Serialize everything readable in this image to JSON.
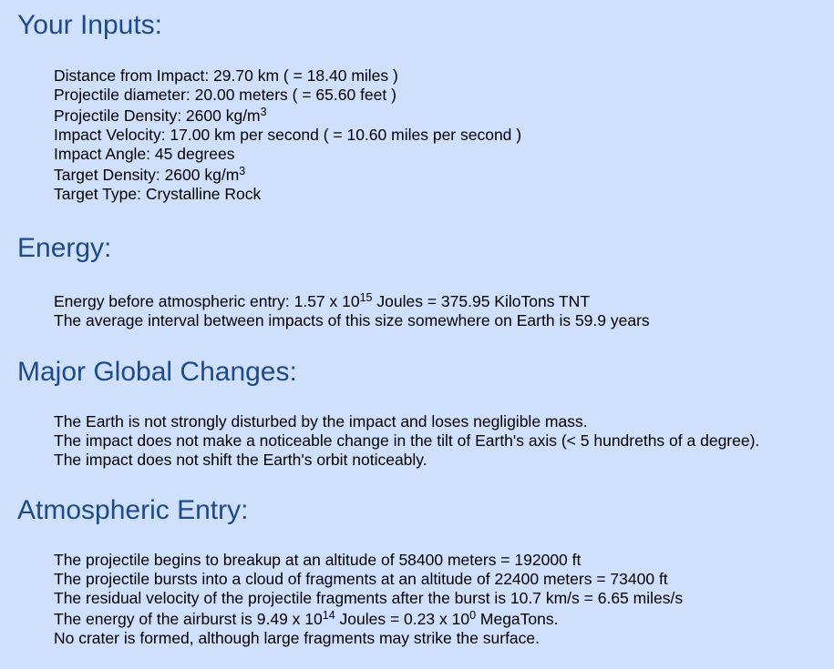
{
  "inputs": {
    "heading": "Your Inputs:",
    "distance": "Distance from Impact: 29.70 km ( = 18.40 miles )",
    "diameter": "Projectile diameter: 20.00 meters ( = 65.60 feet )",
    "density_pre": "Projectile Density: 2600 kg/m",
    "density_exp": "3",
    "velocity": "Impact Velocity: 17.00 km per second ( = 10.60 miles per second )",
    "angle": "Impact Angle: 45 degrees",
    "target_density_pre": "Target Density: 2600 kg/m",
    "target_density_exp": "3",
    "target_type": "Target Type: Crystalline Rock"
  },
  "energy": {
    "heading": "Energy:",
    "entry_pre": "Energy before atmospheric entry: 1.57 x 10",
    "entry_exp": "15",
    "entry_post": " Joules = 375.95 KiloTons TNT",
    "interval": "The average interval between impacts of this size somewhere on Earth is 59.9 years"
  },
  "global": {
    "heading": "Major Global Changes:",
    "line1": "The Earth is not strongly disturbed by the impact and loses negligible mass.",
    "line2": "The impact does not make a noticeable change in the tilt of Earth's axis (< 5 hundreths of a degree).",
    "line3": "The impact does not shift the Earth's orbit noticeably."
  },
  "atmos": {
    "heading": "Atmospheric Entry:",
    "line1": "The projectile begins to breakup at an altitude of 58400 meters = 192000 ft",
    "line2": "The projectile bursts into a cloud of fragments at an altitude of 22400 meters = 73400 ft",
    "line3": "The residual velocity of the projectile fragments after the burst is 10.7 km/s = 6.65 miles/s",
    "airburst_pre": "The energy of the airburst is 9.49 x 10",
    "airburst_exp1": "14",
    "airburst_mid": " Joules = 0.23 x 10",
    "airburst_exp2": "0",
    "airburst_post": " MegaTons.",
    "crater": "No crater is formed, although large fragments may strike the surface."
  }
}
